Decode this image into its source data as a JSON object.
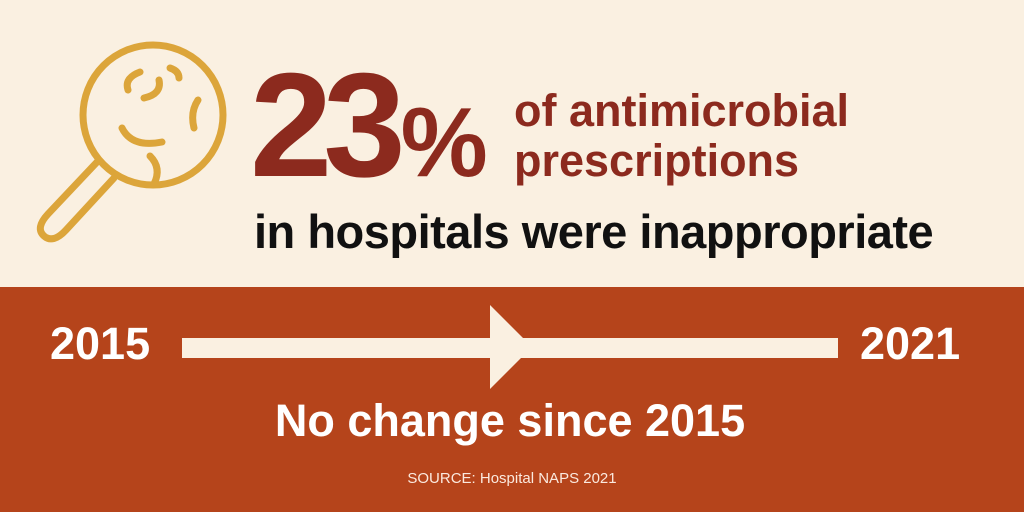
{
  "headline": {
    "number": "23",
    "percent_sign": "%",
    "line1": "of antimicrobial",
    "line2": "prescriptions",
    "subline": "in hospitals were inappropriate"
  },
  "timeline": {
    "start_year": "2015",
    "end_year": "2021",
    "summary": "No change since 2015"
  },
  "source": "SOURCE: Hospital NAPS 2021",
  "icons": {
    "magnifier": "magnifying-glass-bacteria-icon",
    "arrow": "right-arrow-icon"
  },
  "colors": {
    "background_top": "#faf0e1",
    "background_bottom": "#b5441b",
    "accent_dark_red": "#8c2a1e",
    "icon_gold": "#dca53a",
    "text_dark": "#111111",
    "text_light": "#ffffff"
  }
}
